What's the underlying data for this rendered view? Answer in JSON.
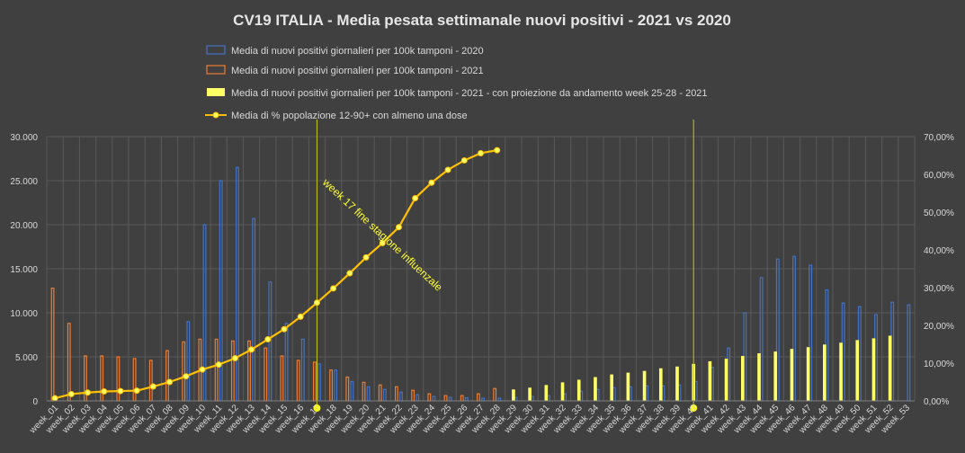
{
  "chart_data": {
    "type": "bar",
    "title": "CV19 ITALIA - Media pesata settimanale nuovi positivi - 2021 vs 2020",
    "categories": [
      "week_01",
      "week_02",
      "week_03",
      "week_04",
      "week_05",
      "week_06",
      "week_07",
      "week_08",
      "week_09",
      "week_10",
      "week_11",
      "week_12",
      "week_13",
      "week_14",
      "week_15",
      "week_16",
      "week_17",
      "week_18",
      "week_19",
      "week_20",
      "week_21",
      "week_22",
      "week_23",
      "week_24",
      "week_25",
      "week_26",
      "week_27",
      "week_28",
      "week_29",
      "week_30",
      "week_31",
      "week_32",
      "week_33",
      "week_34",
      "week_35",
      "week_36",
      "week_37",
      "week_38",
      "week_39",
      "week_40",
      "week_41",
      "week_42",
      "week_43",
      "week_44",
      "week_45",
      "week_46",
      "week_47",
      "week_48",
      "week_49",
      "week_50",
      "week_51",
      "week_52",
      "week_53"
    ],
    "y_left": {
      "min": 0,
      "max": 30000,
      "step": 5000,
      "tick_labels": [
        "0",
        "5.000",
        "10.000",
        "15.000",
        "20.000",
        "25.000",
        "30.000"
      ]
    },
    "y_right": {
      "min": 0,
      "max": 70,
      "step": 10,
      "tick_labels": [
        "0,00%",
        "10,00%",
        "20,00%",
        "30,00%",
        "40,00%",
        "50,00%",
        "60,00%",
        "70,00%"
      ]
    },
    "grid": true,
    "legend_position": "top",
    "series": [
      {
        "name": "Media di nuovi positivi giornalieri per 100k tamponi - 2020",
        "kind": "bar",
        "axis": "left",
        "color": "#4472c4",
        "values": [
          null,
          null,
          null,
          null,
          null,
          null,
          null,
          null,
          9000,
          20000,
          25000,
          26500,
          20700,
          13500,
          8800,
          7000,
          4200,
          3500,
          2200,
          1600,
          1300,
          1000,
          700,
          500,
          400,
          350,
          300,
          300,
          400,
          500,
          600,
          800,
          1100,
          1300,
          1500,
          1600,
          1700,
          1700,
          1800,
          2200,
          3800,
          6000,
          10000,
          14000,
          16100,
          16400,
          15400,
          12600,
          11100,
          10700,
          9800,
          11200,
          10900
        ]
      },
      {
        "name": "Media di nuovi positivi giornalieri per 100k tamponi - 2021",
        "kind": "bar",
        "axis": "left",
        "color": "#ed7d31",
        "values": [
          12800,
          8800,
          5100,
          5100,
          5000,
          4800,
          4600,
          5700,
          6700,
          7000,
          7000,
          6800,
          6800,
          6000,
          5100,
          4600,
          4400,
          3500,
          2700,
          2100,
          1800,
          1600,
          1200,
          800,
          600,
          600,
          800,
          1400,
          null,
          null,
          null,
          null,
          null,
          null,
          null,
          null,
          null,
          null,
          null,
          null,
          null,
          null,
          null,
          null,
          null,
          null,
          null,
          null,
          null,
          null,
          null,
          null,
          null
        ]
      },
      {
        "name": "Media di nuovi positivi giornalieri per 100k tamponi - 2021 - con proiezione da andamento week 25-28 - 2021",
        "kind": "bar",
        "axis": "left",
        "color": "#ffff66",
        "values": [
          null,
          null,
          null,
          null,
          null,
          null,
          null,
          null,
          null,
          null,
          null,
          null,
          null,
          null,
          null,
          null,
          null,
          null,
          null,
          null,
          null,
          null,
          null,
          null,
          null,
          null,
          null,
          null,
          1300,
          1500,
          1800,
          2100,
          2400,
          2700,
          3000,
          3200,
          3400,
          3700,
          3900,
          4200,
          4500,
          4800,
          5100,
          5400,
          5600,
          5900,
          6100,
          6400,
          6600,
          6900,
          7100,
          7400,
          null
        ]
      },
      {
        "name": "Media di % popolazione 12-90+ con almeno una dose",
        "kind": "line",
        "axis": "right",
        "color": "#ffc000",
        "values": [
          0.7,
          1.8,
          2.2,
          2.5,
          2.6,
          2.7,
          3.8,
          5.0,
          6.5,
          8.3,
          9.6,
          11.3,
          13.6,
          16.3,
          19.0,
          22.3,
          26.0,
          29.8,
          33.8,
          38.0,
          41.8,
          46.0,
          53.7,
          57.8,
          61.2,
          63.7,
          65.6,
          66.4,
          null,
          null,
          null,
          null,
          null,
          null,
          null,
          null,
          null,
          null,
          null,
          null,
          null,
          null,
          null,
          null,
          null,
          null,
          null,
          null,
          null,
          null,
          null,
          null,
          null
        ]
      }
    ],
    "annotations": [
      {
        "text": "week 17 fine stagione influenzale",
        "category": "week_17"
      },
      {
        "marker": "week_40"
      }
    ]
  }
}
